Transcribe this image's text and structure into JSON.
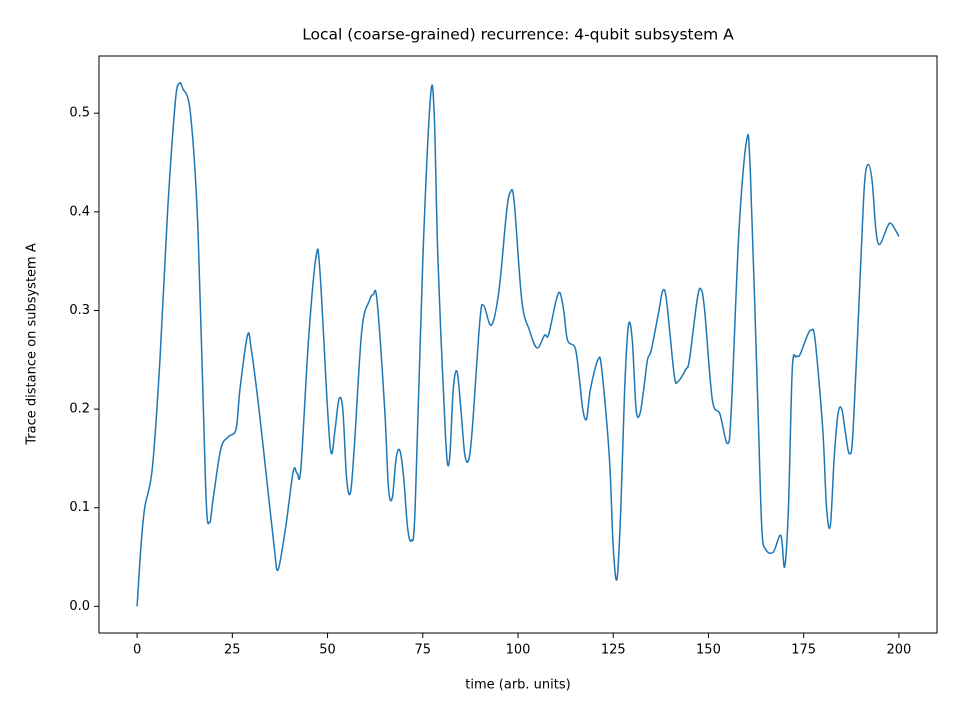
{
  "chart_data": {
    "type": "line",
    "title": "Local (coarse-grained) recurrence: 4-qubit subsystem A",
    "x_label": "time (arb. units)",
    "y_label": "Trace distance on subsystem A",
    "xlim": [
      -10,
      210
    ],
    "ylim": [
      -0.027,
      0.558
    ],
    "xticks": [
      0,
      25,
      50,
      75,
      100,
      125,
      150,
      175,
      200
    ],
    "yticks": [
      {
        "value": 0,
        "label": "0.0"
      },
      0.1,
      0.2,
      0.3,
      0.4,
      0.5
    ],
    "series": [
      {
        "color": "#1f77b4",
        "x": [
          0,
          1,
          2,
          4,
          6,
          8,
          10,
          11,
          12,
          14,
          16,
          18,
          19,
          20,
          22,
          24,
          26,
          27,
          29,
          30,
          32,
          34,
          36,
          37,
          39,
          41,
          42,
          43,
          45,
          47,
          48,
          50,
          51,
          52,
          53,
          54,
          55,
          56,
          57,
          59,
          61,
          62,
          63,
          65,
          66,
          67,
          68,
          69,
          70,
          71,
          72,
          73,
          75,
          77,
          78,
          79,
          81,
          82,
          83,
          84,
          85,
          86,
          87,
          88,
          90,
          91,
          93,
          95,
          97,
          98,
          99,
          101,
          103,
          105,
          107,
          108,
          110,
          111,
          112,
          113,
          115,
          116,
          117,
          118,
          119,
          121,
          122,
          124,
          125,
          126,
          127,
          128,
          129,
          130,
          131,
          132,
          133,
          134,
          135,
          137,
          138,
          139,
          141,
          142,
          144,
          145,
          147,
          148,
          149,
          151,
          153,
          155,
          156,
          158,
          160,
          161,
          163,
          164,
          165,
          167,
          169,
          170,
          171,
          172,
          173,
          174,
          176,
          177,
          178,
          180,
          181,
          182,
          183,
          184,
          185,
          186,
          187,
          188,
          190,
          191,
          192,
          193,
          194,
          195,
          197,
          198,
          200
        ],
        "values": [
          0,
          0.06,
          0.1,
          0.14,
          0.25,
          0.4,
          0.51,
          0.53,
          0.525,
          0.5,
          0.38,
          0.12,
          0.085,
          0.11,
          0.16,
          0.172,
          0.18,
          0.22,
          0.275,
          0.26,
          0.2,
          0.13,
          0.06,
          0.037,
          0.08,
          0.137,
          0.135,
          0.14,
          0.27,
          0.355,
          0.34,
          0.2,
          0.155,
          0.18,
          0.21,
          0.2,
          0.13,
          0.115,
          0.16,
          0.28,
          0.31,
          0.316,
          0.31,
          0.2,
          0.12,
          0.11,
          0.15,
          0.158,
          0.13,
          0.08,
          0.067,
          0.1,
          0.35,
          0.515,
          0.5,
          0.35,
          0.17,
          0.148,
          0.22,
          0.238,
          0.2,
          0.155,
          0.148,
          0.18,
          0.29,
          0.305,
          0.285,
          0.32,
          0.4,
          0.42,
          0.41,
          0.31,
          0.28,
          0.262,
          0.275,
          0.275,
          0.31,
          0.318,
          0.3,
          0.27,
          0.262,
          0.235,
          0.2,
          0.19,
          0.22,
          0.25,
          0.24,
          0.15,
          0.06,
          0.028,
          0.1,
          0.22,
          0.285,
          0.27,
          0.2,
          0.195,
          0.22,
          0.25,
          0.26,
          0.3,
          0.32,
          0.31,
          0.235,
          0.228,
          0.24,
          0.25,
          0.31,
          0.322,
          0.3,
          0.21,
          0.195,
          0.165,
          0.2,
          0.38,
          0.472,
          0.44,
          0.2,
          0.08,
          0.058,
          0.055,
          0.072,
          0.04,
          0.1,
          0.24,
          0.253,
          0.255,
          0.275,
          0.28,
          0.27,
          0.18,
          0.1,
          0.082,
          0.15,
          0.195,
          0.2,
          0.175,
          0.155,
          0.18,
          0.35,
          0.43,
          0.448,
          0.43,
          0.38,
          0.367,
          0.385,
          0.388,
          0.375
        ]
      }
    ]
  }
}
